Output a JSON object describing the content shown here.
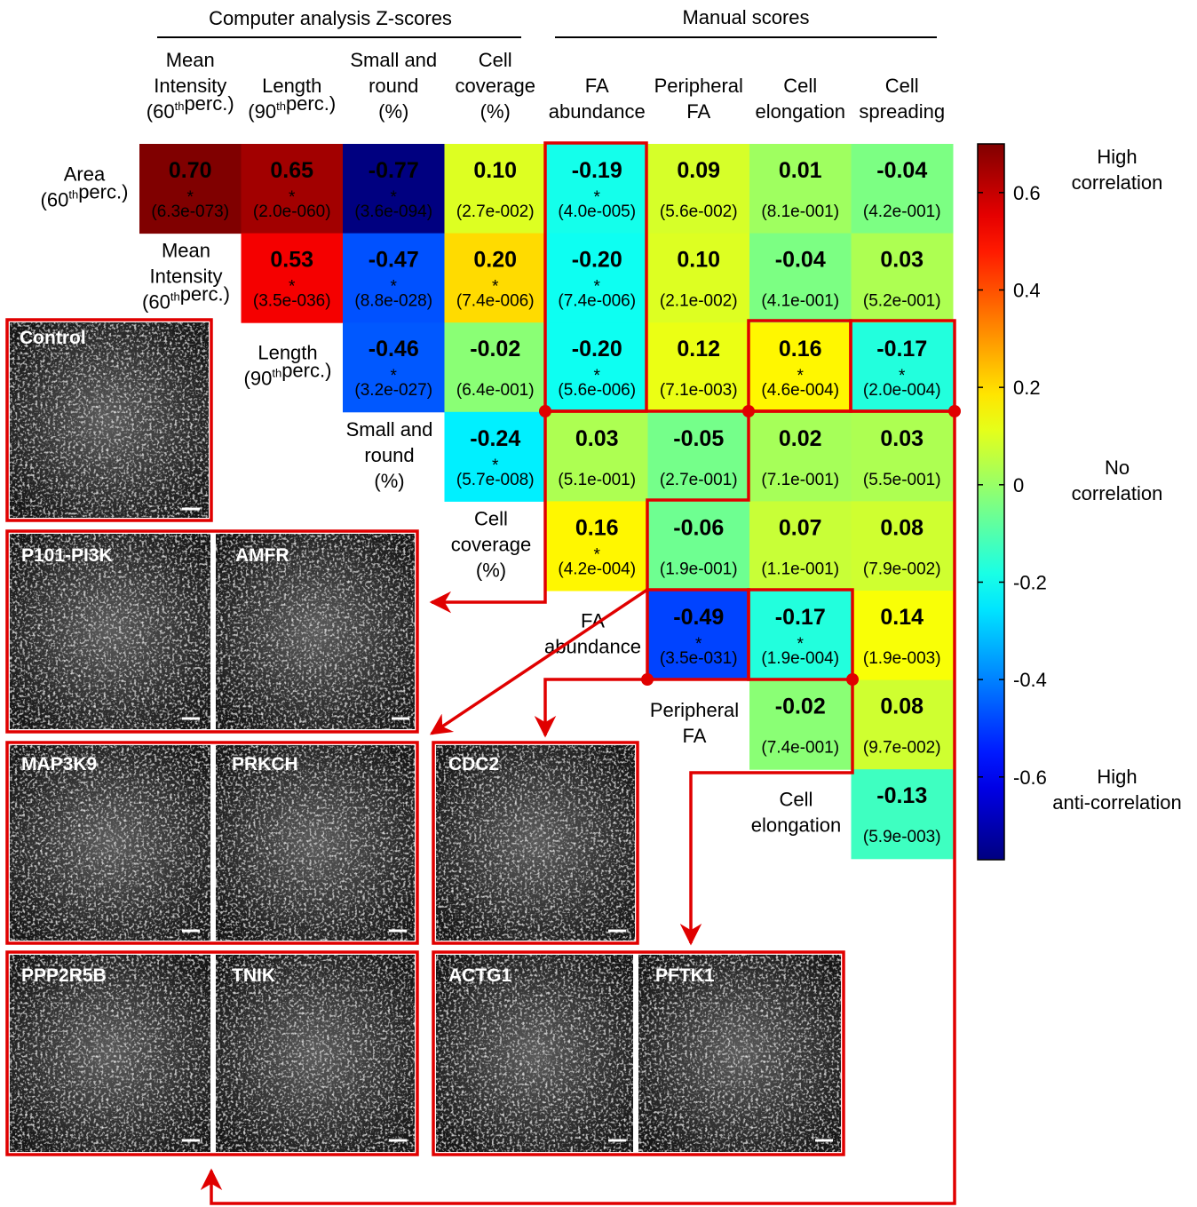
{
  "chart_data": {
    "type": "heatmap",
    "colormap": "jet",
    "group_headers": [
      "Computer analysis Z-scores",
      "Manual scores"
    ],
    "columns": [
      [
        [
          "Mean"
        ],
        [
          "Intensity"
        ],
        [
          "(60",
          {
            "sup": "th"
          },
          "perc.)"
        ]
      ],
      [
        [
          "Length"
        ],
        [
          "(90",
          {
            "sup": "th"
          },
          "perc.)"
        ]
      ],
      [
        [
          "Small and"
        ],
        [
          "round"
        ],
        [
          "(%)"
        ]
      ],
      [
        [
          "Cell"
        ],
        [
          "coverage"
        ],
        [
          "(%)"
        ]
      ],
      [
        [
          "FA"
        ],
        [
          "abundance"
        ]
      ],
      [
        [
          "Peripheral"
        ],
        [
          "FA"
        ]
      ],
      [
        [
          "Cell"
        ],
        [
          "elongation"
        ]
      ],
      [
        [
          "Cell"
        ],
        [
          "spreading"
        ]
      ]
    ],
    "rows": [
      [
        [
          "Area"
        ],
        [
          "(60",
          {
            "sup": "th"
          },
          "perc.)"
        ]
      ],
      [
        [
          "Mean"
        ],
        [
          "Intensity"
        ],
        [
          "(60",
          {
            "sup": "th"
          },
          "perc.)"
        ]
      ],
      [
        [
          "Length"
        ],
        [
          "(90",
          {
            "sup": "th"
          },
          "perc.)"
        ]
      ],
      [
        [
          "Small and"
        ],
        [
          "round"
        ],
        [
          "(%)"
        ]
      ],
      [
        [
          "Cell"
        ],
        [
          "coverage"
        ],
        [
          "(%)"
        ]
      ],
      [
        [
          "FA"
        ],
        [
          "abundance"
        ]
      ],
      [
        [
          "Peripheral"
        ],
        [
          "FA"
        ]
      ],
      [
        [
          "Cell"
        ],
        [
          "elongation"
        ]
      ]
    ],
    "values": [
      [
        0.7,
        0.65,
        -0.77,
        0.1,
        -0.19,
        0.09,
        0.01,
        -0.04
      ],
      [
        null,
        0.53,
        -0.47,
        0.2,
        -0.2,
        0.1,
        -0.04,
        0.03
      ],
      [
        null,
        null,
        -0.46,
        -0.02,
        -0.2,
        0.12,
        0.16,
        -0.17
      ],
      [
        null,
        null,
        null,
        -0.24,
        0.03,
        -0.05,
        0.02,
        0.03
      ],
      [
        null,
        null,
        null,
        null,
        0.16,
        -0.06,
        0.07,
        0.08
      ],
      [
        null,
        null,
        null,
        null,
        null,
        -0.49,
        -0.17,
        0.14
      ],
      [
        null,
        null,
        null,
        null,
        null,
        null,
        -0.02,
        0.08
      ],
      [
        null,
        null,
        null,
        null,
        null,
        null,
        null,
        -0.13
      ]
    ],
    "value_labels": [
      [
        "0.70",
        "0.65",
        "-0.77",
        "0.10",
        "-0.19",
        "0.09",
        "0.01",
        "-0.04"
      ],
      [
        null,
        "0.53",
        "-0.47",
        "0.20",
        "-0.20",
        "0.10",
        "-0.04",
        "0.03"
      ],
      [
        null,
        null,
        "-0.46",
        "-0.02",
        "-0.20",
        "0.12",
        "0.16",
        "-0.17"
      ],
      [
        null,
        null,
        null,
        "-0.24",
        "0.03",
        "-0.05",
        "0.02",
        "0.03"
      ],
      [
        null,
        null,
        null,
        null,
        "0.16",
        "-0.06",
        "0.07",
        "0.08"
      ],
      [
        null,
        null,
        null,
        null,
        null,
        "-0.49",
        "-0.17",
        "0.14"
      ],
      [
        null,
        null,
        null,
        null,
        null,
        null,
        "-0.02",
        "0.08"
      ],
      [
        null,
        null,
        null,
        null,
        null,
        null,
        null,
        "-0.13"
      ]
    ],
    "significance": [
      [
        "*",
        "*",
        "*",
        null,
        "*",
        null,
        null,
        null
      ],
      [
        null,
        "*",
        "*",
        "*",
        "*",
        null,
        null,
        null
      ],
      [
        null,
        null,
        "*",
        null,
        "*",
        null,
        "*",
        "*"
      ],
      [
        null,
        null,
        null,
        "*",
        null,
        null,
        null,
        null
      ],
      [
        null,
        null,
        null,
        null,
        "*",
        null,
        null,
        null
      ],
      [
        null,
        null,
        null,
        null,
        null,
        "*",
        "*",
        null
      ],
      [
        null,
        null,
        null,
        null,
        null,
        null,
        null,
        null
      ],
      [
        null,
        null,
        null,
        null,
        null,
        null,
        null,
        null
      ]
    ],
    "p_labels": [
      [
        "(6.3e-073)",
        "(2.0e-060)",
        "(3.6e-094)",
        "(2.7e-002)",
        "(4.0e-005)",
        "(5.6e-002)",
        "(8.1e-001)",
        "(4.2e-001)"
      ],
      [
        null,
        "(3.5e-036)",
        "(8.8e-028)",
        "(7.4e-006)",
        "(7.4e-006)",
        "(2.1e-002)",
        "(4.1e-001)",
        "(5.2e-001)"
      ],
      [
        null,
        null,
        "(3.2e-027)",
        "(6.4e-001)",
        "(5.6e-006)",
        "(7.1e-003)",
        "(4.6e-004)",
        "(2.0e-004)"
      ],
      [
        null,
        null,
        null,
        "(5.7e-008)",
        "(5.1e-001)",
        "(2.7e-001)",
        "(7.1e-001)",
        "(5.5e-001)"
      ],
      [
        null,
        null,
        null,
        null,
        "(4.2e-004)",
        "(1.9e-001)",
        "(1.1e-001)",
        "(7.9e-002)"
      ],
      [
        null,
        null,
        null,
        null,
        null,
        "(3.5e-031)",
        "(1.9e-004)",
        "(1.9e-003)"
      ],
      [
        null,
        null,
        null,
        null,
        null,
        null,
        "(7.4e-001)",
        "(9.7e-002)"
      ],
      [
        null,
        null,
        null,
        null,
        null,
        null,
        null,
        "(5.9e-003)"
      ]
    ],
    "clim": [
      -0.77,
      0.7
    ],
    "cticks": [
      -0.6,
      -0.4,
      -0.2,
      0,
      0.2,
      0.4,
      0.6
    ],
    "scale_labels": [
      [
        "High",
        "correlation"
      ],
      [
        "No",
        "correlation"
      ],
      [
        "High",
        "anti-correlation"
      ]
    ]
  },
  "image_labels": [
    "Control",
    "P101-PI3K",
    "AMFR",
    "MAP3K9",
    "PRKCH",
    "CDC2",
    "PPP2R5B",
    "TNIK",
    "ACTG1",
    "PFTK1"
  ]
}
